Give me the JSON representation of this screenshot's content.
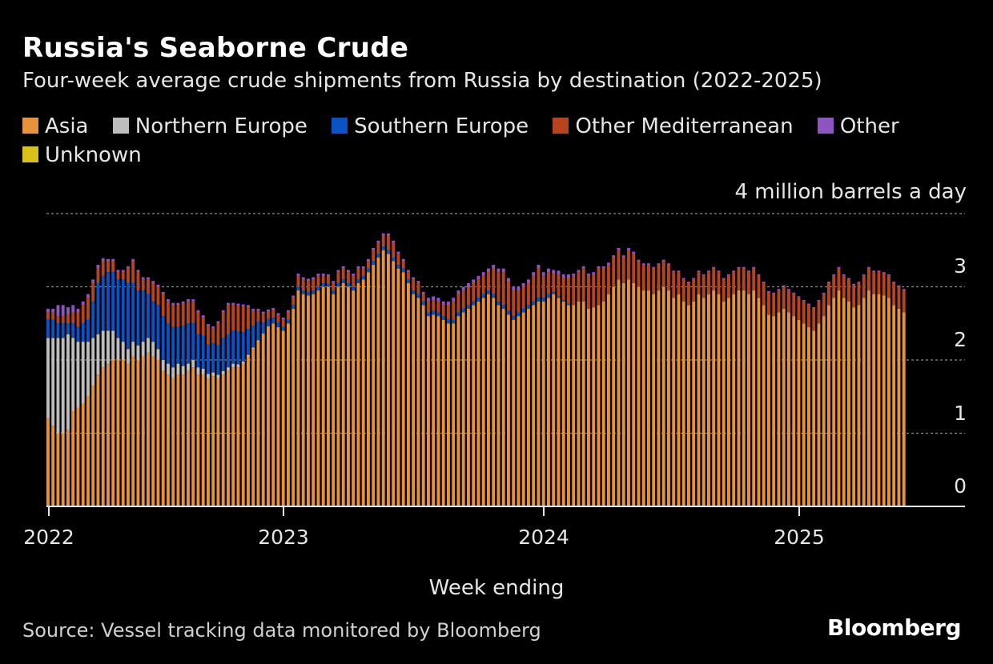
{
  "header": {
    "title": "Russia's Seaborne Crude",
    "subtitle": "Four-week average crude shipments from Russia by destination (2022-2025)"
  },
  "legend": [
    {
      "label": "Asia",
      "color": "#e8923a"
    },
    {
      "label": "Northern Europe",
      "color": "#bdbdbd"
    },
    {
      "label": "Southern Europe",
      "color": "#0b52c4"
    },
    {
      "label": "Other Mediterranean",
      "color": "#b8431f"
    },
    {
      "label": "Other",
      "color": "#8e55c2"
    },
    {
      "label": "Unknown",
      "color": "#d8c21a"
    }
  ],
  "footer": {
    "source": "Source: Vessel tracking data monitored by Bloomberg",
    "brand": "Bloomberg"
  },
  "chart_data": {
    "type": "bar",
    "stacked": true,
    "title": "Russia's Seaborne Crude",
    "subtitle": "Four-week average crude shipments from Russia by destination (2022-2025)",
    "xlabel": "Week ending",
    "unit_label": "4 million barrels a day",
    "ylim": [
      0,
      4
    ],
    "y_ticks": [
      "0",
      "1",
      "2",
      "3"
    ],
    "x_ticks": [
      "2022",
      "2023",
      "2024",
      "2025"
    ],
    "x_range": [
      "2022-01-01",
      "2025-08-15"
    ],
    "grid": true,
    "interval": "weekly",
    "start_week": "2022-01-07",
    "series": [
      {
        "name": "Asia",
        "color": "#e8923a",
        "values": [
          1.2,
          1.1,
          1.0,
          1.0,
          1.05,
          1.3,
          1.35,
          1.4,
          1.5,
          1.65,
          1.8,
          1.9,
          1.95,
          2.0,
          2.0,
          2.0,
          1.95,
          2.05,
          2.0,
          2.05,
          2.1,
          2.05,
          2.0,
          1.85,
          1.8,
          1.75,
          1.8,
          1.8,
          1.85,
          1.9,
          1.8,
          1.8,
          1.75,
          1.78,
          1.75,
          1.8,
          1.85,
          1.9,
          1.9,
          1.95,
          2.05,
          2.15,
          2.25,
          2.35,
          2.45,
          2.5,
          2.45,
          2.4,
          2.5,
          2.7,
          2.95,
          2.9,
          2.88,
          2.9,
          2.95,
          3.0,
          3.0,
          2.9,
          3.0,
          3.05,
          3.0,
          2.95,
          3.05,
          3.1,
          3.2,
          3.3,
          3.4,
          3.5,
          3.45,
          3.35,
          3.25,
          3.2,
          3.05,
          2.9,
          2.85,
          2.75,
          2.6,
          2.62,
          2.6,
          2.55,
          2.5,
          2.5,
          2.6,
          2.65,
          2.7,
          2.75,
          2.8,
          2.85,
          2.9,
          2.85,
          2.75,
          2.7,
          2.62,
          2.55,
          2.6,
          2.65,
          2.7,
          2.75,
          2.8,
          2.8,
          2.85,
          2.9,
          2.85,
          2.8,
          2.75,
          2.75,
          2.8,
          2.8,
          2.7,
          2.72,
          2.75,
          2.8,
          2.9,
          3.0,
          3.1,
          3.05,
          3.1,
          3.05,
          3.0,
          2.95,
          2.95,
          2.9,
          2.95,
          3.0,
          2.95,
          2.85,
          2.9,
          2.8,
          2.75,
          2.8,
          2.9,
          2.85,
          2.9,
          2.95,
          2.9,
          2.8,
          2.85,
          2.9,
          2.95,
          2.95,
          2.9,
          2.95,
          2.85,
          2.75,
          2.62,
          2.6,
          2.65,
          2.7,
          2.65,
          2.6,
          2.55,
          2.5,
          2.45,
          2.4,
          2.5,
          2.6,
          2.75,
          2.85,
          2.95,
          2.85,
          2.8,
          2.72,
          2.75,
          2.85,
          2.95,
          2.9,
          2.9,
          2.88,
          2.85,
          2.75,
          2.7,
          2.65
        ]
      },
      {
        "name": "Northern Europe",
        "color": "#bdbdbd",
        "values": [
          1.1,
          1.2,
          1.3,
          1.3,
          1.3,
          1.0,
          0.9,
          0.85,
          0.75,
          0.65,
          0.55,
          0.5,
          0.45,
          0.4,
          0.3,
          0.25,
          0.2,
          0.2,
          0.2,
          0.2,
          0.2,
          0.2,
          0.15,
          0.15,
          0.15,
          0.15,
          0.15,
          0.12,
          0.1,
          0.1,
          0.1,
          0.08,
          0.06,
          0.05,
          0.05,
          0.05,
          0.05,
          0.05,
          0.04,
          0.03,
          0.02,
          0.02,
          0.02,
          0.01,
          0.01,
          0.0,
          0.0,
          0.0,
          0.0,
          0.0,
          0.0,
          0.0,
          0.0,
          0.0,
          0.0,
          0.0,
          0.0,
          0.0,
          0.0,
          0.0,
          0.0,
          0.0,
          0.0,
          0.0,
          0.0,
          0.0,
          0.0,
          0.0,
          0.0,
          0.0,
          0.0,
          0.0,
          0.0,
          0.0,
          0.0,
          0.0,
          0.0,
          0.0,
          0.0,
          0.0,
          0.0,
          0.0,
          0.0,
          0.0,
          0.0,
          0.0,
          0.0,
          0.0,
          0.0,
          0.0,
          0.0,
          0.0,
          0.0,
          0.0,
          0.0,
          0.0,
          0.0,
          0.0,
          0.0,
          0.0,
          0.0,
          0.0,
          0.0,
          0.0,
          0.0,
          0.0,
          0.0,
          0.0,
          0.0,
          0.0,
          0.0,
          0.0,
          0.0,
          0.0,
          0.0,
          0.0,
          0.0,
          0.0,
          0.0,
          0.0,
          0.0,
          0.0,
          0.0,
          0.0,
          0.0,
          0.0,
          0.0,
          0.0,
          0.0,
          0.0,
          0.0,
          0.0,
          0.0,
          0.0,
          0.0,
          0.0,
          0.0,
          0.0,
          0.0,
          0.0,
          0.0,
          0.0,
          0.0,
          0.0,
          0.0,
          0.0,
          0.0,
          0.0,
          0.0,
          0.0,
          0.0,
          0.0,
          0.0,
          0.0,
          0.0,
          0.0,
          0.0,
          0.0,
          0.0,
          0.0,
          0.0,
          0.0,
          0.0,
          0.0,
          0.0,
          0.0,
          0.0,
          0.0,
          0.0,
          0.0,
          0.0,
          0.0,
          0.0,
          0.0,
          0.0,
          0.0
        ]
      },
      {
        "name": "Southern Europe",
        "color": "#0b52c4",
        "values": [
          0.25,
          0.25,
          0.2,
          0.2,
          0.15,
          0.2,
          0.2,
          0.25,
          0.3,
          0.5,
          0.7,
          0.75,
          0.8,
          0.8,
          0.8,
          0.85,
          0.9,
          0.8,
          0.75,
          0.7,
          0.6,
          0.55,
          0.6,
          0.6,
          0.55,
          0.55,
          0.5,
          0.55,
          0.55,
          0.5,
          0.45,
          0.45,
          0.4,
          0.4,
          0.4,
          0.45,
          0.45,
          0.45,
          0.45,
          0.4,
          0.35,
          0.3,
          0.25,
          0.15,
          0.1,
          0.08,
          0.06,
          0.05,
          0.05,
          0.05,
          0.05,
          0.05,
          0.05,
          0.05,
          0.05,
          0.05,
          0.04,
          0.05,
          0.05,
          0.05,
          0.05,
          0.05,
          0.05,
          0.05,
          0.05,
          0.05,
          0.05,
          0.05,
          0.05,
          0.05,
          0.05,
          0.05,
          0.05,
          0.05,
          0.05,
          0.05,
          0.05,
          0.05,
          0.05,
          0.05,
          0.05,
          0.05,
          0.05,
          0.05,
          0.05,
          0.05,
          0.05,
          0.05,
          0.05,
          0.05,
          0.05,
          0.05,
          0.05,
          0.05,
          0.05,
          0.05,
          0.05,
          0.05,
          0.05,
          0.05,
          0.05,
          0.03,
          0.02,
          0.02,
          0.02,
          0.0,
          0.0,
          0.0,
          0.0,
          0.0,
          0.0,
          0.0,
          0.0,
          0.0,
          0.0,
          0.0,
          0.0,
          0.0,
          0.0,
          0.0,
          0.0,
          0.0,
          0.0,
          0.0,
          0.0,
          0.0,
          0.0,
          0.0,
          0.0,
          0.0,
          0.0,
          0.0,
          0.0,
          0.0,
          0.0,
          0.0,
          0.0,
          0.0,
          0.0,
          0.0,
          0.0,
          0.0,
          0.0,
          0.0,
          0.0,
          0.0,
          0.0,
          0.0,
          0.0,
          0.0,
          0.0,
          0.0,
          0.0,
          0.0,
          0.0,
          0.0,
          0.0,
          0.0,
          0.0,
          0.0,
          0.0,
          0.0,
          0.0,
          0.0,
          0.0,
          0.0,
          0.0,
          0.0,
          0.0,
          0.0,
          0.0,
          0.0,
          0.0,
          0.0,
          0.0,
          0.0,
          0.0,
          0.0
        ]
      },
      {
        "name": "Other Mediterranean",
        "color": "#b8431f",
        "values": [
          0.1,
          0.1,
          0.1,
          0.1,
          0.12,
          0.15,
          0.2,
          0.25,
          0.3,
          0.25,
          0.2,
          0.2,
          0.15,
          0.15,
          0.1,
          0.1,
          0.2,
          0.3,
          0.25,
          0.15,
          0.2,
          0.25,
          0.25,
          0.3,
          0.3,
          0.3,
          0.3,
          0.3,
          0.3,
          0.3,
          0.3,
          0.25,
          0.25,
          0.2,
          0.3,
          0.35,
          0.4,
          0.35,
          0.35,
          0.35,
          0.3,
          0.2,
          0.15,
          0.12,
          0.1,
          0.1,
          0.1,
          0.1,
          0.1,
          0.1,
          0.15,
          0.15,
          0.15,
          0.15,
          0.15,
          0.1,
          0.1,
          0.1,
          0.15,
          0.15,
          0.15,
          0.15,
          0.15,
          0.1,
          0.1,
          0.15,
          0.15,
          0.15,
          0.2,
          0.2,
          0.15,
          0.1,
          0.1,
          0.15,
          0.15,
          0.1,
          0.15,
          0.15,
          0.15,
          0.15,
          0.2,
          0.25,
          0.25,
          0.25,
          0.25,
          0.25,
          0.25,
          0.25,
          0.25,
          0.35,
          0.4,
          0.45,
          0.4,
          0.35,
          0.3,
          0.3,
          0.3,
          0.35,
          0.4,
          0.3,
          0.3,
          0.25,
          0.3,
          0.3,
          0.35,
          0.4,
          0.4,
          0.45,
          0.45,
          0.45,
          0.5,
          0.45,
          0.4,
          0.4,
          0.4,
          0.35,
          0.4,
          0.4,
          0.35,
          0.35,
          0.35,
          0.35,
          0.35,
          0.35,
          0.35,
          0.35,
          0.3,
          0.3,
          0.3,
          0.3,
          0.3,
          0.3,
          0.3,
          0.3,
          0.3,
          0.3,
          0.3,
          0.3,
          0.3,
          0.3,
          0.3,
          0.3,
          0.3,
          0.3,
          0.3,
          0.3,
          0.3,
          0.3,
          0.3,
          0.3,
          0.3,
          0.3,
          0.3,
          0.3,
          0.3,
          0.3,
          0.3,
          0.3,
          0.3,
          0.3,
          0.3,
          0.3,
          0.3,
          0.3,
          0.3,
          0.3,
          0.3,
          0.3,
          0.3,
          0.3,
          0.3,
          0.3
        ]
      },
      {
        "name": "Other",
        "color": "#8e55c2",
        "values": [
          0.05,
          0.05,
          0.15,
          0.15,
          0.1,
          0.1,
          0.05,
          0.05,
          0.05,
          0.05,
          0.05,
          0.04,
          0.03,
          0.03,
          0.03,
          0.03,
          0.03,
          0.03,
          0.03,
          0.03,
          0.03,
          0.03,
          0.03,
          0.03,
          0.03,
          0.03,
          0.03,
          0.03,
          0.03,
          0.03,
          0.03,
          0.03,
          0.03,
          0.03,
          0.03,
          0.03,
          0.03,
          0.03,
          0.03,
          0.03,
          0.03,
          0.03,
          0.03,
          0.03,
          0.03,
          0.03,
          0.03,
          0.03,
          0.03,
          0.03,
          0.03,
          0.03,
          0.03,
          0.03,
          0.03,
          0.03,
          0.03,
          0.03,
          0.03,
          0.03,
          0.03,
          0.03,
          0.03,
          0.03,
          0.03,
          0.03,
          0.03,
          0.03,
          0.03,
          0.03,
          0.03,
          0.03,
          0.03,
          0.03,
          0.03,
          0.03,
          0.05,
          0.05,
          0.05,
          0.05,
          0.05,
          0.05,
          0.05,
          0.05,
          0.05,
          0.05,
          0.05,
          0.05,
          0.05,
          0.05,
          0.05,
          0.05,
          0.05,
          0.05,
          0.05,
          0.05,
          0.05,
          0.05,
          0.05,
          0.05,
          0.05,
          0.05,
          0.05,
          0.05,
          0.05,
          0.03,
          0.03,
          0.03,
          0.03,
          0.03,
          0.03,
          0.03,
          0.03,
          0.03,
          0.03,
          0.03,
          0.03,
          0.03,
          0.02,
          0.02,
          0.02,
          0.02,
          0.02,
          0.02,
          0.02,
          0.02,
          0.02,
          0.02,
          0.02,
          0.02,
          0.02,
          0.02,
          0.02,
          0.02,
          0.02,
          0.02,
          0.02,
          0.02,
          0.02,
          0.02,
          0.02,
          0.02,
          0.02,
          0.02,
          0.02,
          0.02,
          0.02,
          0.02,
          0.02,
          0.02,
          0.02,
          0.02,
          0.02,
          0.02,
          0.02,
          0.02,
          0.02,
          0.02,
          0.02,
          0.02,
          0.02,
          0.02,
          0.02,
          0.02,
          0.02,
          0.02,
          0.02,
          0.02,
          0.02,
          0.02,
          0.02,
          0.02,
          0.02,
          0.02,
          0.02,
          0.02,
          0.02,
          0.02
        ]
      },
      {
        "name": "Unknown",
        "color": "#d8c21a",
        "values": [
          0,
          0,
          0,
          0,
          0,
          0,
          0,
          0,
          0,
          0,
          0,
          0,
          0,
          0,
          0,
          0,
          0,
          0,
          0,
          0,
          0,
          0,
          0,
          0,
          0,
          0,
          0,
          0,
          0,
          0,
          0,
          0,
          0,
          0,
          0,
          0,
          0,
          0,
          0,
          0,
          0,
          0,
          0,
          0,
          0,
          0,
          0,
          0,
          0,
          0,
          0,
          0,
          0,
          0,
          0,
          0,
          0,
          0,
          0,
          0,
          0,
          0,
          0,
          0,
          0,
          0,
          0,
          0,
          0,
          0,
          0,
          0,
          0,
          0,
          0,
          0,
          0,
          0,
          0,
          0,
          0,
          0,
          0,
          0,
          0,
          0,
          0,
          0,
          0,
          0,
          0,
          0,
          0,
          0,
          0,
          0,
          0,
          0,
          0,
          0,
          0,
          0,
          0,
          0,
          0,
          0,
          0,
          0,
          0,
          0,
          0,
          0,
          0,
          0,
          0,
          0,
          0,
          0,
          0,
          0,
          0,
          0,
          0,
          0,
          0,
          0,
          0,
          0,
          0,
          0,
          0,
          0,
          0,
          0,
          0,
          0,
          0,
          0,
          0,
          0,
          0,
          0,
          0,
          0,
          0,
          0,
          0,
          0,
          0,
          0,
          0,
          0,
          0,
          0,
          0,
          0,
          0,
          0,
          0,
          0,
          0,
          0,
          0,
          0,
          0,
          0,
          0,
          0,
          0,
          0,
          0,
          0,
          0,
          0,
          0,
          0.02,
          0.02,
          0,
          0,
          0,
          0,
          0.02,
          0.02,
          0.02,
          0.02,
          0.03,
          0.03,
          0.03
        ]
      }
    ]
  }
}
